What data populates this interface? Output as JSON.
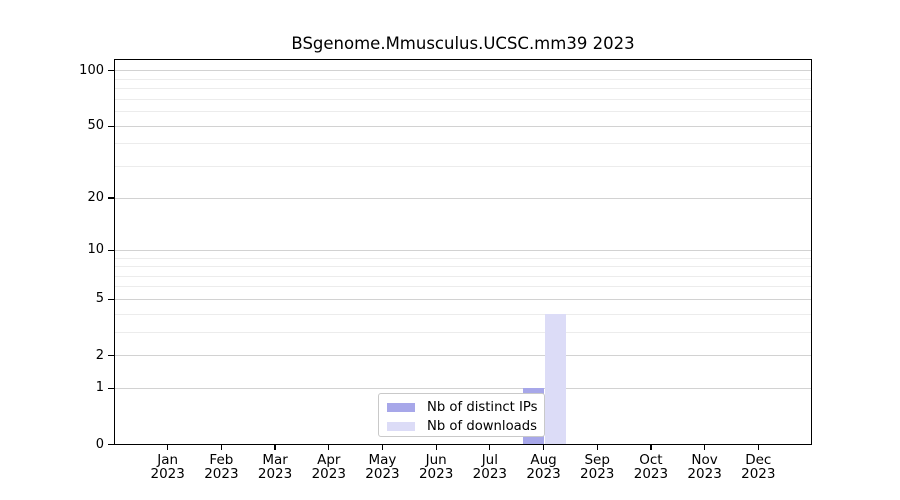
{
  "title": "BSgenome.Mmusculus.UCSC.mm39 2023",
  "legend": {
    "items": [
      {
        "label": "Nb of distinct IPs",
        "color": "#a7a7e9"
      },
      {
        "label": "Nb of downloads",
        "color": "#dcdcf7"
      }
    ]
  },
  "chart_data": {
    "type": "bar",
    "title": "BSgenome.Mmusculus.UCSC.mm39 2023",
    "categories": [
      "Jan 2023",
      "Feb 2023",
      "Mar 2023",
      "Apr 2023",
      "May 2023",
      "Jun 2023",
      "Jul 2023",
      "Aug 2023",
      "Sep 2023",
      "Oct 2023",
      "Nov 2023",
      "Dec 2023"
    ],
    "series": [
      {
        "name": "Nb of distinct IPs",
        "color": "#a7a7e9",
        "values": [
          0,
          0,
          0,
          0,
          0,
          0,
          0,
          1,
          0,
          0,
          0,
          0
        ]
      },
      {
        "name": "Nb of downloads",
        "color": "#dcdcf7",
        "values": [
          0,
          0,
          0,
          0,
          0,
          0,
          0,
          4,
          0,
          0,
          0,
          0
        ]
      }
    ],
    "y_scale": "log1p",
    "y_ticks": [
      0,
      1,
      2,
      5,
      10,
      20,
      50,
      100
    ],
    "y_minor_gridlines": [
      3,
      4,
      6,
      7,
      8,
      9,
      30,
      40,
      60,
      70,
      80,
      90
    ],
    "ylim": [
      0,
      116
    ],
    "grid": true,
    "legend_position": "bottom-center",
    "colors": {
      "major_grid": "#d2d2d2",
      "minor_grid": "#ececec",
      "axis": "#000000"
    }
  }
}
